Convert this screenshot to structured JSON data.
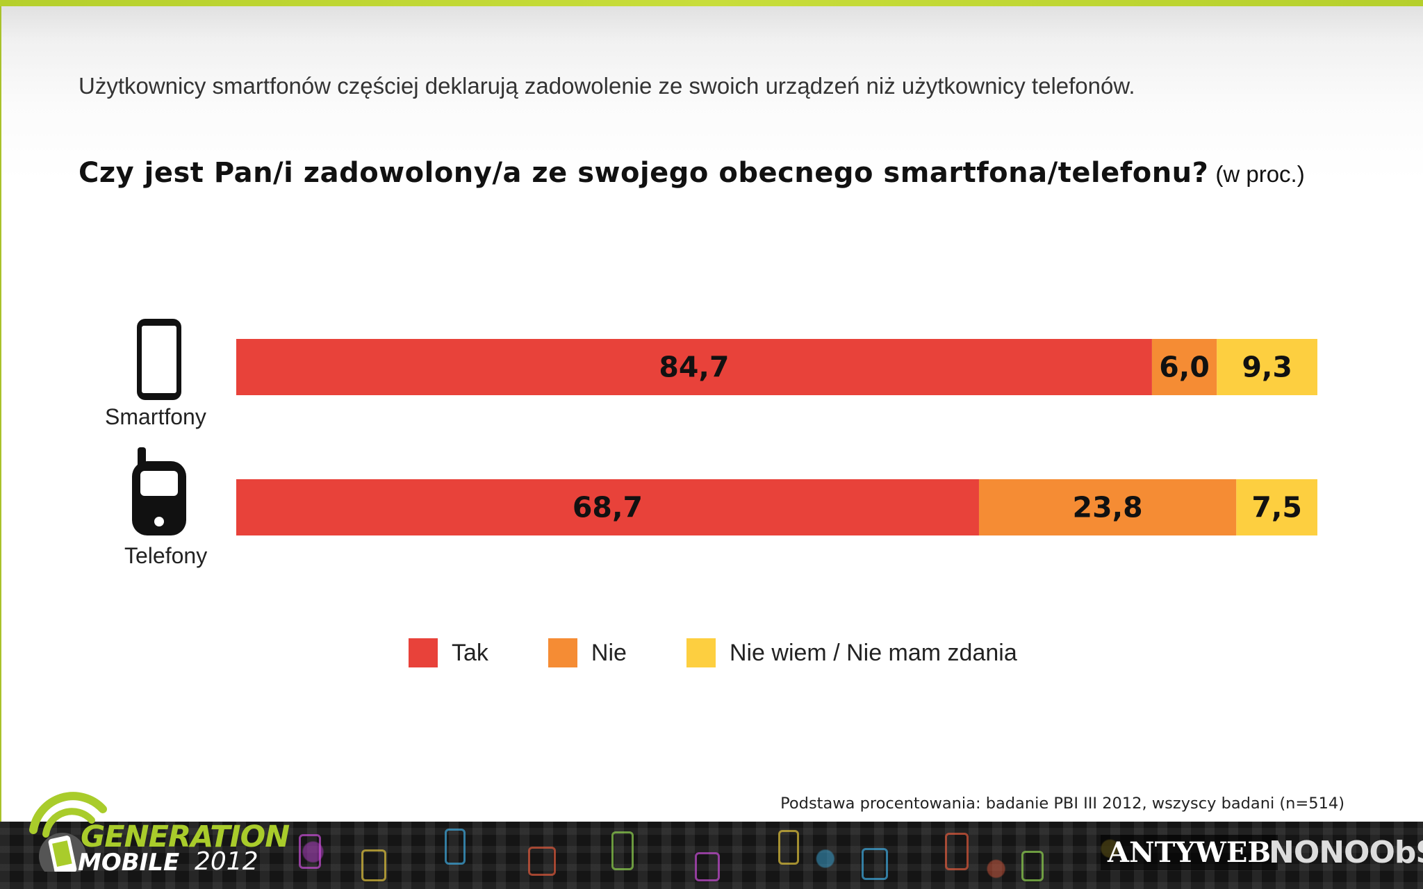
{
  "headline": "Użytkownicy smartfonów częściej deklarują zadowolenie ze swoich urządzeń niż użytkownicy telefonów.",
  "question": {
    "main": "Czy jest Pan/i zadowolony/a ze swojego obecnego smartfona/telefonu?",
    "unit": "(w proc.)"
  },
  "base_note": "Podstawa procentowania: badanie PBI III 2012, wszyscy badani (n=514)",
  "colors": {
    "tak": "#e8423a",
    "nie": "#f58c34",
    "nie_wiem": "#fdcf40",
    "accent": "#b5cf2b"
  },
  "chart_data": {
    "type": "bar",
    "orientation": "horizontal",
    "stacked": true,
    "categories": [
      "Smartfony",
      "Telefony"
    ],
    "category_icons": [
      "smartphone-icon",
      "mobile-phone-icon"
    ],
    "series": [
      {
        "name": "Tak",
        "values": [
          84.7,
          68.7
        ],
        "labels": [
          "84,7",
          "68,7"
        ],
        "color": "#e8423a"
      },
      {
        "name": "Nie",
        "values": [
          6.0,
          23.8
        ],
        "labels": [
          "6,0",
          "23,8"
        ],
        "color": "#f58c34"
      },
      {
        "name": "Nie wiem / Nie mam zdania",
        "values": [
          9.3,
          7.5
        ],
        "labels": [
          "9,3",
          "7,5"
        ],
        "color": "#fdcf40"
      }
    ],
    "xlim": [
      0,
      100
    ],
    "grid": false,
    "legend_position": "bottom",
    "title": "Czy jest Pan/i zadowolony/a ze swojego obecnego smartfona/telefonu?",
    "unit": "(w proc.)"
  },
  "footer": {
    "logo_line1": "GENERATION",
    "logo_line2": "MOBILE",
    "logo_year": "2012",
    "brand_1": "ANTYWEB",
    "brand_2": "NONOObS"
  }
}
